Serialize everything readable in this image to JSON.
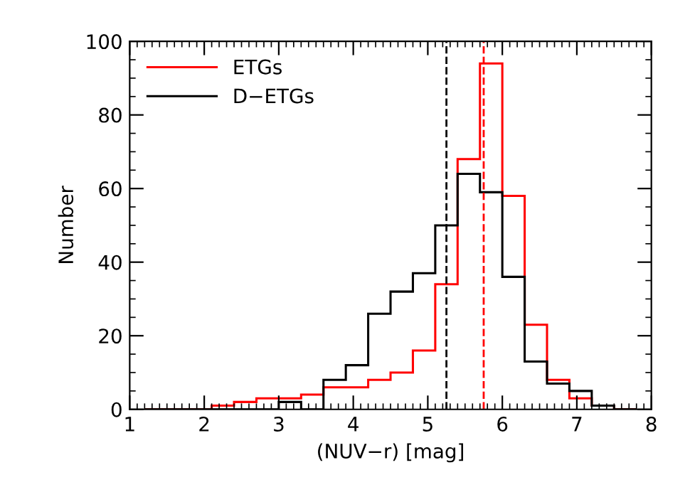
{
  "chart_data": {
    "type": "histogram",
    "xlabel": "(NUV−r) [mag]",
    "ylabel": "Number",
    "bins": [
      1.2,
      1.5,
      1.8,
      2.1,
      2.4,
      2.7,
      3.0,
      3.3,
      3.6,
      3.9,
      4.2,
      4.5,
      4.8,
      5.1,
      5.4,
      5.7,
      6.0,
      6.3,
      6.6,
      6.9,
      7.2,
      7.5,
      7.8
    ],
    "series": [
      {
        "name": "ETGs",
        "color": "#ff0000",
        "values": [
          0,
          0,
          0,
          1,
          2,
          3,
          3,
          4,
          6,
          6,
          8,
          10,
          16,
          34,
          68,
          94,
          58,
          23,
          8,
          3,
          1,
          0
        ]
      },
      {
        "name": "D−ETGs",
        "color": "#000000",
        "values": [
          0,
          0,
          0,
          0,
          0,
          0,
          2,
          0,
          8,
          12,
          26,
          32,
          37,
          50,
          64,
          59,
          36,
          13,
          7,
          5,
          1,
          0
        ]
      }
    ],
    "ref_lines": [
      {
        "axis": "x",
        "value": 5.25,
        "color": "#000000",
        "line_style": "dashed"
      },
      {
        "axis": "x",
        "value": 5.75,
        "color": "#ff0000",
        "line_style": "dashed"
      }
    ],
    "xlim": [
      1,
      8
    ],
    "xticks": [
      1,
      2,
      3,
      4,
      5,
      6,
      7,
      8
    ],
    "ylim": [
      0,
      100
    ],
    "yticks": [
      0,
      20,
      40,
      60,
      80,
      100
    ],
    "grid": false,
    "legend": "top left"
  }
}
